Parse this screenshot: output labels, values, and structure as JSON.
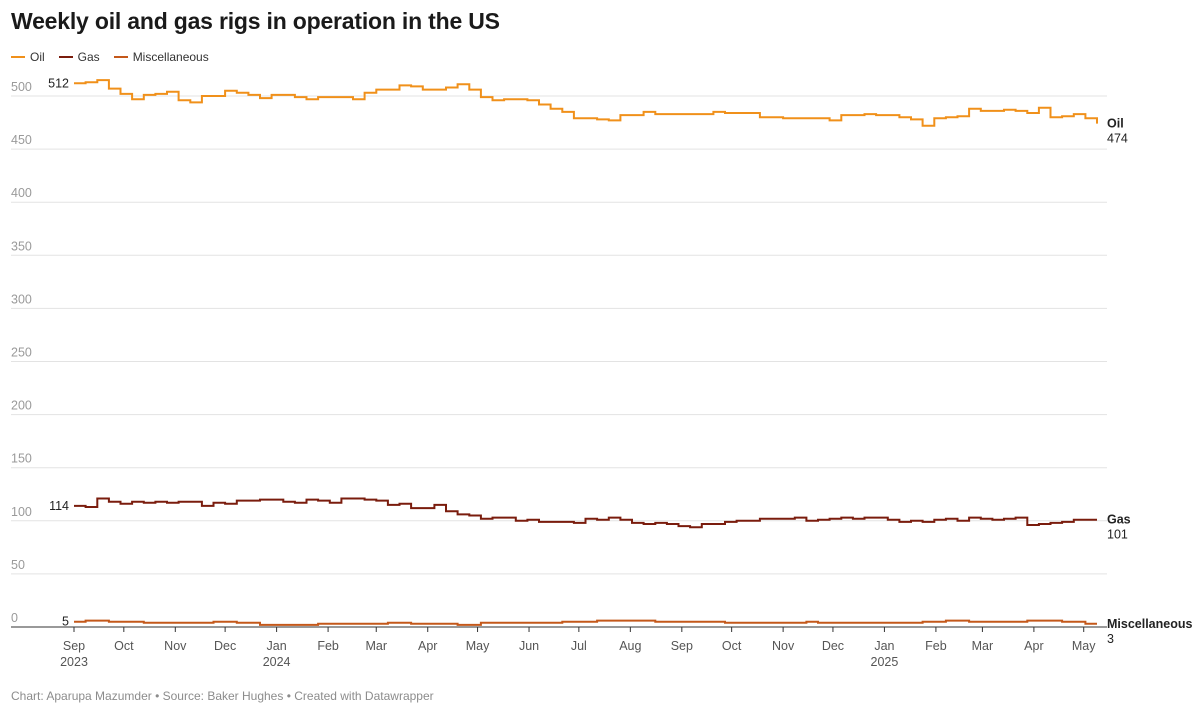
{
  "title": "Weekly oil and gas rigs in operation in the US",
  "footer": {
    "credit": "Chart: Aparupa Mazumder",
    "source": "Source: Baker Hughes",
    "tool": "Created with Datawrapper",
    "separator": " • "
  },
  "legend": [
    {
      "label": "Oil",
      "color": "#f0901a"
    },
    {
      "label": "Gas",
      "color": "#7a1c0d"
    },
    {
      "label": "Miscellaneous",
      "color": "#c4581a"
    }
  ],
  "chart_data": {
    "type": "line",
    "title": "Weekly oil and gas rigs in operation in the US",
    "xlabel": "",
    "ylabel": "",
    "ylim": [
      0,
      500
    ],
    "yticks": [
      0,
      50,
      100,
      150,
      200,
      250,
      300,
      350,
      400,
      450,
      500
    ],
    "grid": true,
    "legend_position": "top-left",
    "x_start": "2023-09-01",
    "x_end": "2025-05-09",
    "interpolation": "step",
    "x_ticks": [
      {
        "date": "2023-09-01",
        "label": "Sep",
        "year": "2023"
      },
      {
        "date": "2023-10-01",
        "label": "Oct",
        "year": ""
      },
      {
        "date": "2023-11-01",
        "label": "Nov",
        "year": ""
      },
      {
        "date": "2023-12-01",
        "label": "Dec",
        "year": ""
      },
      {
        "date": "2024-01-01",
        "label": "Jan",
        "year": "2024"
      },
      {
        "date": "2024-02-01",
        "label": "Feb",
        "year": ""
      },
      {
        "date": "2024-03-01",
        "label": "Mar",
        "year": ""
      },
      {
        "date": "2024-04-01",
        "label": "Apr",
        "year": ""
      },
      {
        "date": "2024-05-01",
        "label": "May",
        "year": ""
      },
      {
        "date": "2024-06-01",
        "label": "Jun",
        "year": ""
      },
      {
        "date": "2024-07-01",
        "label": "Jul",
        "year": ""
      },
      {
        "date": "2024-08-01",
        "label": "Aug",
        "year": ""
      },
      {
        "date": "2024-09-01",
        "label": "Sep",
        "year": ""
      },
      {
        "date": "2024-10-01",
        "label": "Oct",
        "year": ""
      },
      {
        "date": "2024-11-01",
        "label": "Nov",
        "year": ""
      },
      {
        "date": "2024-12-01",
        "label": "Dec",
        "year": ""
      },
      {
        "date": "2025-01-01",
        "label": "Jan",
        "year": "2025"
      },
      {
        "date": "2025-02-01",
        "label": "Feb",
        "year": ""
      },
      {
        "date": "2025-03-01",
        "label": "Mar",
        "year": ""
      },
      {
        "date": "2025-04-01",
        "label": "Apr",
        "year": ""
      },
      {
        "date": "2025-05-01",
        "label": "May",
        "year": ""
      }
    ],
    "series": [
      {
        "name": "Oil",
        "color": "#f0901a",
        "start_label": "512",
        "end_label": "Oil",
        "end_value": "474",
        "points": [
          [
            "2023-09-01",
            512
          ],
          [
            "2023-09-08",
            513
          ],
          [
            "2023-09-15",
            515
          ],
          [
            "2023-09-22",
            507
          ],
          [
            "2023-09-29",
            502
          ],
          [
            "2023-10-06",
            497
          ],
          [
            "2023-10-13",
            501
          ],
          [
            "2023-10-20",
            502
          ],
          [
            "2023-10-27",
            504
          ],
          [
            "2023-11-03",
            496
          ],
          [
            "2023-11-10",
            494
          ],
          [
            "2023-11-17",
            500
          ],
          [
            "2023-11-24",
            500
          ],
          [
            "2023-12-01",
            505
          ],
          [
            "2023-12-08",
            503
          ],
          [
            "2023-12-15",
            501
          ],
          [
            "2023-12-22",
            498
          ],
          [
            "2023-12-29",
            501
          ],
          [
            "2024-01-05",
            501
          ],
          [
            "2024-01-12",
            499
          ],
          [
            "2024-01-19",
            497
          ],
          [
            "2024-01-26",
            499
          ],
          [
            "2024-02-02",
            499
          ],
          [
            "2024-02-09",
            499
          ],
          [
            "2024-02-16",
            497
          ],
          [
            "2024-02-23",
            503
          ],
          [
            "2024-03-01",
            506
          ],
          [
            "2024-03-08",
            506
          ],
          [
            "2024-03-15",
            510
          ],
          [
            "2024-03-22",
            509
          ],
          [
            "2024-03-29",
            506
          ],
          [
            "2024-04-05",
            506
          ],
          [
            "2024-04-12",
            508
          ],
          [
            "2024-04-19",
            511
          ],
          [
            "2024-04-26",
            506
          ],
          [
            "2024-05-03",
            499
          ],
          [
            "2024-05-10",
            496
          ],
          [
            "2024-05-17",
            497
          ],
          [
            "2024-05-24",
            497
          ],
          [
            "2024-05-31",
            496
          ],
          [
            "2024-06-07",
            492
          ],
          [
            "2024-06-14",
            488
          ],
          [
            "2024-06-21",
            485
          ],
          [
            "2024-06-28",
            479
          ],
          [
            "2024-07-05",
            479
          ],
          [
            "2024-07-12",
            478
          ],
          [
            "2024-07-19",
            477
          ],
          [
            "2024-07-26",
            482
          ],
          [
            "2024-08-02",
            482
          ],
          [
            "2024-08-09",
            485
          ],
          [
            "2024-08-16",
            483
          ],
          [
            "2024-08-23",
            483
          ],
          [
            "2024-08-30",
            483
          ],
          [
            "2024-09-06",
            483
          ],
          [
            "2024-09-13",
            483
          ],
          [
            "2024-09-20",
            485
          ],
          [
            "2024-09-27",
            484
          ],
          [
            "2024-10-04",
            484
          ],
          [
            "2024-10-11",
            484
          ],
          [
            "2024-10-18",
            480
          ],
          [
            "2024-10-25",
            480
          ],
          [
            "2024-11-01",
            479
          ],
          [
            "2024-11-08",
            479
          ],
          [
            "2024-11-15",
            479
          ],
          [
            "2024-11-22",
            479
          ],
          [
            "2024-11-29",
            477
          ],
          [
            "2024-12-06",
            482
          ],
          [
            "2024-12-13",
            482
          ],
          [
            "2024-12-20",
            483
          ],
          [
            "2024-12-27",
            482
          ],
          [
            "2025-01-03",
            482
          ],
          [
            "2025-01-10",
            480
          ],
          [
            "2025-01-17",
            478
          ],
          [
            "2025-01-24",
            472
          ],
          [
            "2025-01-31",
            479
          ],
          [
            "2025-02-07",
            480
          ],
          [
            "2025-02-14",
            481
          ],
          [
            "2025-02-21",
            488
          ],
          [
            "2025-02-28",
            486
          ],
          [
            "2025-03-07",
            486
          ],
          [
            "2025-03-14",
            487
          ],
          [
            "2025-03-21",
            486
          ],
          [
            "2025-03-28",
            484
          ],
          [
            "2025-04-04",
            489
          ],
          [
            "2025-04-11",
            480
          ],
          [
            "2025-04-18",
            481
          ],
          [
            "2025-04-25",
            483
          ],
          [
            "2025-05-02",
            479
          ],
          [
            "2025-05-09",
            474
          ]
        ]
      },
      {
        "name": "Gas",
        "color": "#7a1c0d",
        "start_label": "114",
        "end_label": "Gas",
        "end_value": "101",
        "points": [
          [
            "2023-09-01",
            114
          ],
          [
            "2023-09-08",
            113
          ],
          [
            "2023-09-15",
            121
          ],
          [
            "2023-09-22",
            118
          ],
          [
            "2023-09-29",
            116
          ],
          [
            "2023-10-06",
            118
          ],
          [
            "2023-10-13",
            117
          ],
          [
            "2023-10-20",
            118
          ],
          [
            "2023-10-27",
            117
          ],
          [
            "2023-11-03",
            118
          ],
          [
            "2023-11-10",
            118
          ],
          [
            "2023-11-17",
            114
          ],
          [
            "2023-11-24",
            117
          ],
          [
            "2023-12-01",
            116
          ],
          [
            "2023-12-08",
            119
          ],
          [
            "2023-12-15",
            119
          ],
          [
            "2023-12-22",
            120
          ],
          [
            "2023-12-29",
            120
          ],
          [
            "2024-01-05",
            118
          ],
          [
            "2024-01-12",
            117
          ],
          [
            "2024-01-19",
            120
          ],
          [
            "2024-01-26",
            119
          ],
          [
            "2024-02-02",
            117
          ],
          [
            "2024-02-09",
            121
          ],
          [
            "2024-02-16",
            121
          ],
          [
            "2024-02-23",
            120
          ],
          [
            "2024-03-01",
            119
          ],
          [
            "2024-03-08",
            115
          ],
          [
            "2024-03-15",
            116
          ],
          [
            "2024-03-22",
            112
          ],
          [
            "2024-03-29",
            112
          ],
          [
            "2024-04-05",
            115
          ],
          [
            "2024-04-12",
            109
          ],
          [
            "2024-04-19",
            106
          ],
          [
            "2024-04-26",
            105
          ],
          [
            "2024-05-03",
            102
          ],
          [
            "2024-05-10",
            103
          ],
          [
            "2024-05-17",
            103
          ],
          [
            "2024-05-24",
            100
          ],
          [
            "2024-05-31",
            101
          ],
          [
            "2024-06-07",
            99
          ],
          [
            "2024-06-14",
            99
          ],
          [
            "2024-06-21",
            99
          ],
          [
            "2024-06-28",
            98
          ],
          [
            "2024-07-05",
            102
          ],
          [
            "2024-07-12",
            101
          ],
          [
            "2024-07-19",
            103
          ],
          [
            "2024-07-26",
            101
          ],
          [
            "2024-08-02",
            98
          ],
          [
            "2024-08-09",
            97
          ],
          [
            "2024-08-16",
            98
          ],
          [
            "2024-08-23",
            97
          ],
          [
            "2024-08-30",
            95
          ],
          [
            "2024-09-06",
            94
          ],
          [
            "2024-09-13",
            97
          ],
          [
            "2024-09-20",
            97
          ],
          [
            "2024-09-27",
            99
          ],
          [
            "2024-10-04",
            100
          ],
          [
            "2024-10-11",
            100
          ],
          [
            "2024-10-18",
            102
          ],
          [
            "2024-10-25",
            102
          ],
          [
            "2024-11-01",
            102
          ],
          [
            "2024-11-08",
            103
          ],
          [
            "2024-11-15",
            100
          ],
          [
            "2024-11-22",
            101
          ],
          [
            "2024-11-29",
            102
          ],
          [
            "2024-12-06",
            103
          ],
          [
            "2024-12-13",
            102
          ],
          [
            "2024-12-20",
            103
          ],
          [
            "2024-12-27",
            103
          ],
          [
            "2025-01-03",
            101
          ],
          [
            "2025-01-10",
            99
          ],
          [
            "2025-01-17",
            100
          ],
          [
            "2025-01-24",
            99
          ],
          [
            "2025-01-31",
            101
          ],
          [
            "2025-02-07",
            102
          ],
          [
            "2025-02-14",
            100
          ],
          [
            "2025-02-21",
            103
          ],
          [
            "2025-02-28",
            102
          ],
          [
            "2025-03-07",
            101
          ],
          [
            "2025-03-14",
            102
          ],
          [
            "2025-03-21",
            103
          ],
          [
            "2025-03-28",
            96
          ],
          [
            "2025-04-04",
            97
          ],
          [
            "2025-04-11",
            98
          ],
          [
            "2025-04-18",
            99
          ],
          [
            "2025-04-25",
            101
          ],
          [
            "2025-05-02",
            101
          ],
          [
            "2025-05-09",
            101
          ]
        ]
      },
      {
        "name": "Miscellaneous",
        "color": "#c4581a",
        "start_label": "5",
        "end_label": "Miscellaneous",
        "end_value": "3",
        "points": [
          [
            "2023-09-01",
            5
          ],
          [
            "2023-09-08",
            6
          ],
          [
            "2023-09-22",
            5
          ],
          [
            "2023-10-13",
            4
          ],
          [
            "2023-11-24",
            5
          ],
          [
            "2023-12-08",
            4
          ],
          [
            "2023-12-22",
            2
          ],
          [
            "2024-01-26",
            3
          ],
          [
            "2024-03-08",
            4
          ],
          [
            "2024-03-22",
            3
          ],
          [
            "2024-04-19",
            2
          ],
          [
            "2024-05-03",
            4
          ],
          [
            "2024-06-21",
            5
          ],
          [
            "2024-07-12",
            6
          ],
          [
            "2024-08-16",
            5
          ],
          [
            "2024-09-13",
            5
          ],
          [
            "2024-09-27",
            4
          ],
          [
            "2024-11-15",
            5
          ],
          [
            "2024-11-22",
            4
          ],
          [
            "2025-01-24",
            5
          ],
          [
            "2025-02-07",
            6
          ],
          [
            "2025-02-21",
            5
          ],
          [
            "2025-03-28",
            6
          ],
          [
            "2025-04-18",
            5
          ],
          [
            "2025-05-02",
            3
          ],
          [
            "2025-05-09",
            3
          ]
        ]
      }
    ]
  }
}
